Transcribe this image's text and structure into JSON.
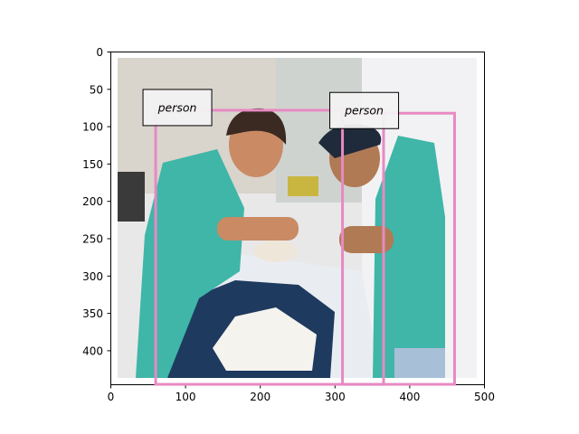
{
  "axes": {
    "x_ticks": [
      "0",
      "100",
      "200",
      "300",
      "400",
      "500"
    ],
    "y_ticks": [
      "0",
      "50",
      "100",
      "150",
      "200",
      "250",
      "300",
      "350",
      "400"
    ]
  },
  "detections": [
    {
      "label": "person",
      "x_range": [
        60,
        365
      ],
      "y_range": [
        78,
        445
      ]
    },
    {
      "label": "person",
      "x_range": [
        310,
        460
      ],
      "y_range": [
        82,
        445
      ]
    }
  ],
  "colors": {
    "box": "#e78ac3",
    "label_bg": "#f2f2f2",
    "image_bg": "#e8e8e8",
    "scrubs": "#3fb6a8",
    "drape": "#1e3a5f"
  }
}
